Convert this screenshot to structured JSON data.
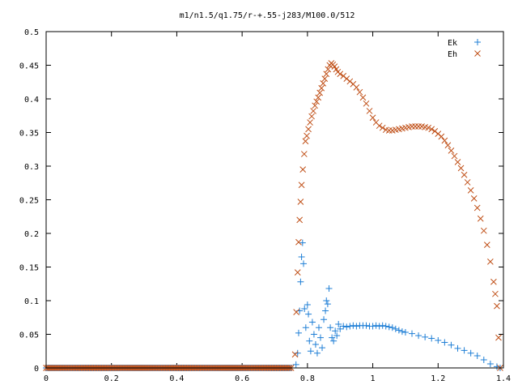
{
  "chart_data": {
    "type": "scatter",
    "title": "m1/n1.5/q1.75/r-+.55-j283/M100.0/512",
    "xlabel": "",
    "ylabel": "",
    "xlim": [
      0,
      1.4
    ],
    "ylim": [
      0,
      0.5
    ],
    "x_ticks": [
      "0",
      "0.2",
      "0.4",
      "0.6",
      "0.8",
      "1",
      "1.2",
      "1.4"
    ],
    "y_ticks": [
      "0",
      "0.05",
      "0.1",
      "0.15",
      "0.2",
      "0.25",
      "0.3",
      "0.35",
      "0.4",
      "0.45",
      "0.5"
    ],
    "grid": false,
    "legend_position": "top-right",
    "series": [
      {
        "name": "Ek",
        "marker": "plus",
        "color": "#1f7fd6",
        "points": [
          [
            0.0,
            0.0
          ],
          [
            0.05,
            0.0
          ],
          [
            0.1,
            0.0
          ],
          [
            0.15,
            0.0
          ],
          [
            0.2,
            0.0
          ],
          [
            0.25,
            0.0
          ],
          [
            0.3,
            0.0
          ],
          [
            0.35,
            0.0
          ],
          [
            0.4,
            0.0
          ],
          [
            0.45,
            0.0
          ],
          [
            0.5,
            0.0
          ],
          [
            0.55,
            0.0
          ],
          [
            0.6,
            0.0
          ],
          [
            0.65,
            0.0
          ],
          [
            0.7,
            0.0
          ],
          [
            0.75,
            0.0
          ],
          [
            0.765,
            0.005
          ],
          [
            0.77,
            0.022
          ],
          [
            0.773,
            0.052
          ],
          [
            0.776,
            0.085
          ],
          [
            0.779,
            0.128
          ],
          [
            0.782,
            0.165
          ],
          [
            0.785,
            0.186
          ],
          [
            0.788,
            0.155
          ],
          [
            0.791,
            0.088
          ],
          [
            0.795,
            0.06
          ],
          [
            0.8,
            0.094
          ],
          [
            0.803,
            0.08
          ],
          [
            0.806,
            0.04
          ],
          [
            0.81,
            0.025
          ],
          [
            0.815,
            0.068
          ],
          [
            0.82,
            0.05
          ],
          [
            0.825,
            0.035
          ],
          [
            0.83,
            0.022
          ],
          [
            0.835,
            0.06
          ],
          [
            0.84,
            0.045
          ],
          [
            0.845,
            0.03
          ],
          [
            0.85,
            0.072
          ],
          [
            0.855,
            0.085
          ],
          [
            0.858,
            0.1
          ],
          [
            0.862,
            0.095
          ],
          [
            0.866,
            0.118
          ],
          [
            0.87,
            0.06
          ],
          [
            0.875,
            0.045
          ],
          [
            0.88,
            0.04
          ],
          [
            0.885,
            0.055
          ],
          [
            0.89,
            0.048
          ],
          [
            0.895,
            0.065
          ],
          [
            0.9,
            0.058
          ],
          [
            0.91,
            0.062
          ],
          [
            0.92,
            0.061
          ],
          [
            0.93,
            0.062
          ],
          [
            0.94,
            0.063
          ],
          [
            0.95,
            0.062
          ],
          [
            0.96,
            0.063
          ],
          [
            0.97,
            0.063
          ],
          [
            0.98,
            0.063
          ],
          [
            0.99,
            0.062
          ],
          [
            1.0,
            0.062
          ],
          [
            1.01,
            0.063
          ],
          [
            1.02,
            0.062
          ],
          [
            1.03,
            0.063
          ],
          [
            1.04,
            0.062
          ],
          [
            1.05,
            0.061
          ],
          [
            1.06,
            0.06
          ],
          [
            1.07,
            0.058
          ],
          [
            1.08,
            0.056
          ],
          [
            1.09,
            0.054
          ],
          [
            1.1,
            0.053
          ],
          [
            1.12,
            0.051
          ],
          [
            1.14,
            0.048
          ],
          [
            1.16,
            0.046
          ],
          [
            1.18,
            0.044
          ],
          [
            1.2,
            0.041
          ],
          [
            1.22,
            0.038
          ],
          [
            1.24,
            0.034
          ],
          [
            1.26,
            0.029
          ],
          [
            1.28,
            0.026
          ],
          [
            1.3,
            0.022
          ],
          [
            1.32,
            0.018
          ],
          [
            1.34,
            0.012
          ],
          [
            1.36,
            0.006
          ],
          [
            1.38,
            0.002
          ],
          [
            1.39,
            0.0
          ]
        ]
      },
      {
        "name": "Eh",
        "marker": "cross",
        "color": "#c05018",
        "points": [
          [
            0.0,
            0.0
          ],
          [
            0.05,
            0.0
          ],
          [
            0.1,
            0.0
          ],
          [
            0.15,
            0.0
          ],
          [
            0.2,
            0.0
          ],
          [
            0.25,
            0.0
          ],
          [
            0.3,
            0.0
          ],
          [
            0.35,
            0.0
          ],
          [
            0.4,
            0.0
          ],
          [
            0.45,
            0.0
          ],
          [
            0.5,
            0.0
          ],
          [
            0.55,
            0.0
          ],
          [
            0.6,
            0.0
          ],
          [
            0.65,
            0.0
          ],
          [
            0.7,
            0.0
          ],
          [
            0.75,
            0.0
          ],
          [
            0.762,
            0.02
          ],
          [
            0.766,
            0.083
          ],
          [
            0.77,
            0.142
          ],
          [
            0.773,
            0.187
          ],
          [
            0.776,
            0.22
          ],
          [
            0.779,
            0.247
          ],
          [
            0.782,
            0.272
          ],
          [
            0.786,
            0.295
          ],
          [
            0.79,
            0.318
          ],
          [
            0.794,
            0.337
          ],
          [
            0.798,
            0.345
          ],
          [
            0.803,
            0.355
          ],
          [
            0.808,
            0.365
          ],
          [
            0.813,
            0.374
          ],
          [
            0.818,
            0.382
          ],
          [
            0.823,
            0.39
          ],
          [
            0.828,
            0.396
          ],
          [
            0.833,
            0.402
          ],
          [
            0.838,
            0.409
          ],
          [
            0.843,
            0.416
          ],
          [
            0.848,
            0.423
          ],
          [
            0.853,
            0.43
          ],
          [
            0.858,
            0.437
          ],
          [
            0.863,
            0.444
          ],
          [
            0.868,
            0.45
          ],
          [
            0.873,
            0.453
          ],
          [
            0.878,
            0.451
          ],
          [
            0.883,
            0.448
          ],
          [
            0.888,
            0.444
          ],
          [
            0.893,
            0.44
          ],
          [
            0.9,
            0.437
          ],
          [
            0.91,
            0.434
          ],
          [
            0.92,
            0.43
          ],
          [
            0.93,
            0.426
          ],
          [
            0.94,
            0.422
          ],
          [
            0.95,
            0.417
          ],
          [
            0.96,
            0.41
          ],
          [
            0.97,
            0.402
          ],
          [
            0.98,
            0.393
          ],
          [
            0.99,
            0.382
          ],
          [
            1.0,
            0.372
          ],
          [
            1.01,
            0.365
          ],
          [
            1.02,
            0.36
          ],
          [
            1.03,
            0.357
          ],
          [
            1.04,
            0.354
          ],
          [
            1.05,
            0.353
          ],
          [
            1.06,
            0.353
          ],
          [
            1.07,
            0.354
          ],
          [
            1.08,
            0.355
          ],
          [
            1.09,
            0.356
          ],
          [
            1.1,
            0.357
          ],
          [
            1.11,
            0.358
          ],
          [
            1.12,
            0.359
          ],
          [
            1.13,
            0.359
          ],
          [
            1.14,
            0.359
          ],
          [
            1.15,
            0.359
          ],
          [
            1.16,
            0.358
          ],
          [
            1.17,
            0.357
          ],
          [
            1.18,
            0.355
          ],
          [
            1.19,
            0.352
          ],
          [
            1.2,
            0.348
          ],
          [
            1.21,
            0.344
          ],
          [
            1.22,
            0.338
          ],
          [
            1.23,
            0.331
          ],
          [
            1.24,
            0.323
          ],
          [
            1.25,
            0.315
          ],
          [
            1.26,
            0.306
          ],
          [
            1.27,
            0.297
          ],
          [
            1.28,
            0.287
          ],
          [
            1.29,
            0.276
          ],
          [
            1.3,
            0.264
          ],
          [
            1.31,
            0.252
          ],
          [
            1.32,
            0.238
          ],
          [
            1.33,
            0.222
          ],
          [
            1.34,
            0.204
          ],
          [
            1.35,
            0.183
          ],
          [
            1.36,
            0.158
          ],
          [
            1.37,
            0.128
          ],
          [
            1.375,
            0.11
          ],
          [
            1.38,
            0.092
          ],
          [
            1.385,
            0.045
          ],
          [
            1.39,
            0.0
          ]
        ]
      }
    ]
  }
}
